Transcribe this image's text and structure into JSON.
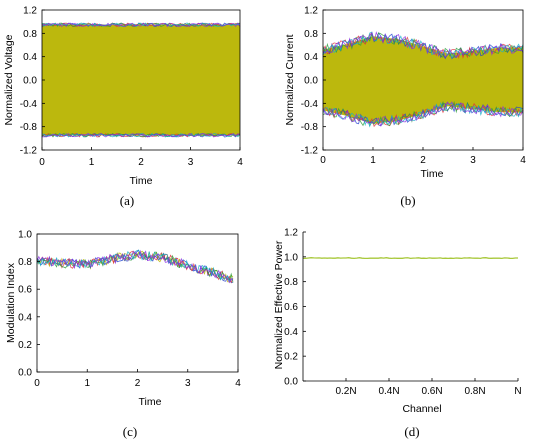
{
  "chart_data": [
    {
      "panel": "(a)",
      "type": "line",
      "xlabel": "Time",
      "ylabel": "Normalized Voltage",
      "xlim": [
        0,
        4
      ],
      "ylim": [
        -1.2,
        1.2
      ],
      "x_ticks": [
        "0",
        "1",
        "2",
        "3",
        "4"
      ],
      "y_ticks": [
        "-1.2",
        "-0.8",
        "-0.4",
        "0.0",
        "0.4",
        "0.8",
        "1.2"
      ],
      "envelope": {
        "x": [
          0,
          4
        ],
        "upper": [
          0.95,
          0.95
        ],
        "lower": [
          -0.95,
          -0.95
        ]
      },
      "colors": [
        "#b8b400",
        "#1f3fcf",
        "#e0303a",
        "#2a9d3a",
        "#18b0c8",
        "#8a2be2"
      ]
    },
    {
      "panel": "(b)",
      "type": "line",
      "xlabel": "Time",
      "ylabel": "Normalized Current",
      "xlim": [
        0,
        4
      ],
      "ylim": [
        -1.2,
        1.2
      ],
      "x_ticks": [
        "0",
        "1",
        "2",
        "3",
        "4"
      ],
      "y_ticks": [
        "-1.2",
        "-0.8",
        "-0.4",
        "0.0",
        "0.4",
        "0.8",
        "1.2"
      ],
      "envelope": {
        "x": [
          0,
          0.5,
          1.0,
          1.5,
          2.0,
          2.5,
          3.0,
          3.5,
          4.0
        ],
        "upper": [
          0.52,
          0.62,
          0.75,
          0.7,
          0.58,
          0.45,
          0.5,
          0.55,
          0.56
        ],
        "lower": [
          -0.52,
          -0.62,
          -0.75,
          -0.7,
          -0.58,
          -0.45,
          -0.5,
          -0.55,
          -0.56
        ]
      },
      "colors": [
        "#b8b400",
        "#1f3fcf",
        "#e0303a",
        "#2a9d3a",
        "#18b0c8",
        "#8a2be2"
      ]
    },
    {
      "panel": "(c)",
      "type": "line",
      "xlabel": "Time",
      "ylabel": "Modulation Index",
      "xlim": [
        0,
        4
      ],
      "ylim": [
        0,
        1.0
      ],
      "x_ticks": [
        "0",
        "1",
        "2",
        "3",
        "4"
      ],
      "y_ticks": [
        "0.0",
        "0.2",
        "0.4",
        "0.6",
        "0.8",
        "1.0"
      ],
      "series_trend": {
        "x": [
          0,
          0.5,
          1.0,
          1.5,
          2.0,
          2.5,
          3.0,
          3.5,
          3.9
        ],
        "y": [
          0.81,
          0.79,
          0.78,
          0.82,
          0.85,
          0.83,
          0.77,
          0.72,
          0.67
        ]
      },
      "colors": [
        "#b8b400",
        "#1f3fcf",
        "#e0303a",
        "#2a9d3a",
        "#18b0c8",
        "#8a2be2"
      ]
    },
    {
      "panel": "(d)",
      "type": "line",
      "xlabel": "Channel",
      "ylabel": "Normalized Effective Power",
      "xlim": [
        0,
        1
      ],
      "ylim": [
        0,
        1.2
      ],
      "x_ticks": [
        "0.2N",
        "0.4N",
        "0.6N",
        "0.8N",
        "N"
      ],
      "y_ticks": [
        "0.0",
        "0.2",
        "0.4",
        "0.6",
        "0.8",
        "1.0",
        "1.2"
      ],
      "series": [
        {
          "x": [
            0,
            0.25,
            0.5,
            0.75,
            1.0
          ],
          "y": [
            0.99,
            0.99,
            0.99,
            0.99,
            0.99
          ]
        }
      ],
      "colors": [
        "#a8c83a"
      ]
    }
  ]
}
